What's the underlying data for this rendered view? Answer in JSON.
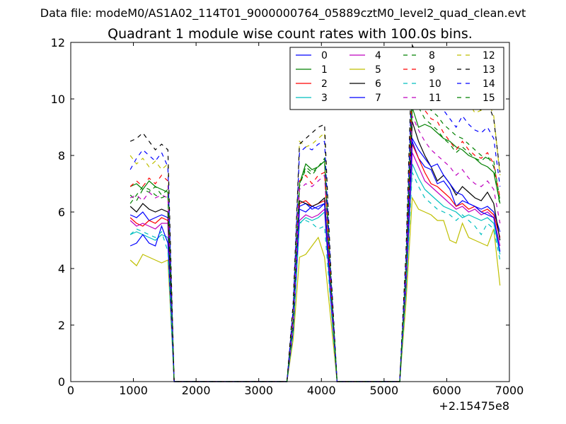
{
  "suptitle": "Data file: modeM0/AS1A02_114T01_9000000764_05889cztM0_level2_quad_clean.evt",
  "chart_data": {
    "type": "line",
    "title": "Quadrant 1 module wise count rates with 100.0s bins.",
    "xlabel": "",
    "ylabel": "",
    "x_offset_label": "+2.15475e8",
    "xlim": [
      0,
      7000
    ],
    "ylim": [
      0,
      12
    ],
    "xticks": [
      0,
      1000,
      2000,
      3000,
      4000,
      5000,
      6000,
      7000
    ],
    "yticks": [
      0,
      2,
      4,
      6,
      8,
      10,
      12
    ],
    "grid": false,
    "legend_position": "top-right",
    "x": [
      950,
      1050,
      1150,
      1250,
      1350,
      1450,
      1550,
      1650,
      1750,
      1850,
      1950,
      2050,
      2150,
      2250,
      2350,
      2450,
      2550,
      2650,
      2750,
      2850,
      2950,
      3050,
      3150,
      3250,
      3350,
      3450,
      3550,
      3650,
      3750,
      3850,
      3950,
      4050,
      4150,
      4250,
      4350,
      4450,
      4550,
      4650,
      4750,
      4850,
      4950,
      5050,
      5150,
      5250,
      5350,
      5450,
      5550,
      5650,
      5750,
      5850,
      5950,
      6050,
      6150,
      6250,
      6350,
      6450,
      6550,
      6650,
      6750,
      6850
    ],
    "series": [
      {
        "name": "0",
        "color": "#0000ff",
        "dash": false,
        "values": [
          5.9,
          5.8,
          6.0,
          5.7,
          5.8,
          5.9,
          5.8,
          0,
          0,
          0,
          0,
          0,
          0,
          0,
          0,
          0,
          0,
          0,
          0,
          0,
          0,
          0,
          0,
          0,
          0,
          0,
          2.0,
          6.2,
          6.3,
          6.1,
          6.2,
          6.3,
          3.0,
          0,
          0,
          0,
          0,
          0,
          0,
          0,
          0,
          0,
          0,
          0,
          3.5,
          8.5,
          7.9,
          7.6,
          7.5,
          7.0,
          7.1,
          6.8,
          6.2,
          6.4,
          6.3,
          6.2,
          6.1,
          6.2,
          6.0,
          5.3
        ]
      },
      {
        "name": "1",
        "color": "#008000",
        "dash": false,
        "values": [
          6.9,
          7.0,
          6.8,
          7.1,
          6.9,
          6.8,
          6.7,
          0,
          0,
          0,
          0,
          0,
          0,
          0,
          0,
          0,
          0,
          0,
          0,
          0,
          0,
          0,
          0,
          0,
          0,
          0,
          2.2,
          7.0,
          7.7,
          7.5,
          7.6,
          7.8,
          3.5,
          0,
          0,
          0,
          0,
          0,
          0,
          0,
          0,
          0,
          0,
          0,
          3.8,
          9.7,
          9.0,
          9.1,
          9.0,
          8.8,
          8.6,
          8.5,
          8.3,
          8.2,
          8.0,
          7.9,
          7.7,
          7.6,
          7.4,
          6.3
        ]
      },
      {
        "name": "2",
        "color": "#ff0000",
        "dash": false,
        "values": [
          5.8,
          5.6,
          5.5,
          5.7,
          5.6,
          5.8,
          5.7,
          0,
          0,
          0,
          0,
          0,
          0,
          0,
          0,
          0,
          0,
          0,
          0,
          0,
          0,
          0,
          0,
          0,
          0,
          0,
          2.0,
          6.3,
          6.4,
          6.2,
          6.3,
          6.4,
          3.0,
          0,
          0,
          0,
          0,
          0,
          0,
          0,
          0,
          0,
          0,
          0,
          3.4,
          8.4,
          7.9,
          7.4,
          7.0,
          6.9,
          6.7,
          6.5,
          6.2,
          6.3,
          6.1,
          6.2,
          6.0,
          6.1,
          5.9,
          5.1
        ]
      },
      {
        "name": "3",
        "color": "#00bfbf",
        "dash": false,
        "values": [
          5.2,
          5.3,
          5.2,
          5.1,
          5.0,
          5.2,
          5.1,
          0,
          0,
          0,
          0,
          0,
          0,
          0,
          0,
          0,
          0,
          0,
          0,
          0,
          0,
          0,
          0,
          0,
          0,
          0,
          1.8,
          5.6,
          5.8,
          5.7,
          5.8,
          6.0,
          2.8,
          0,
          0,
          0,
          0,
          0,
          0,
          0,
          0,
          0,
          0,
          0,
          3.3,
          7.7,
          7.2,
          6.8,
          6.6,
          6.4,
          6.2,
          6.1,
          6.0,
          5.8,
          5.9,
          5.8,
          5.7,
          5.8,
          5.6,
          4.5
        ]
      },
      {
        "name": "4",
        "color": "#bf00bf",
        "dash": false,
        "values": [
          5.7,
          5.5,
          5.6,
          5.5,
          5.4,
          5.6,
          5.6,
          0,
          0,
          0,
          0,
          0,
          0,
          0,
          0,
          0,
          0,
          0,
          0,
          0,
          0,
          0,
          0,
          0,
          0,
          0,
          1.9,
          5.7,
          5.9,
          5.8,
          5.9,
          6.1,
          2.9,
          0,
          0,
          0,
          0,
          0,
          0,
          0,
          0,
          0,
          0,
          0,
          3.3,
          8.1,
          7.6,
          7.1,
          6.9,
          6.7,
          6.5,
          6.3,
          6.1,
          6.2,
          6.0,
          6.1,
          5.9,
          6.0,
          5.8,
          4.8
        ]
      },
      {
        "name": "5",
        "color": "#bfbf00",
        "dash": false,
        "values": [
          4.3,
          4.1,
          4.5,
          4.4,
          4.3,
          4.2,
          4.3,
          0,
          0,
          0,
          0,
          0,
          0,
          0,
          0,
          0,
          0,
          0,
          0,
          0,
          0,
          0,
          0,
          0,
          0,
          0,
          1.5,
          4.4,
          4.5,
          4.8,
          5.1,
          4.4,
          2.2,
          0,
          0,
          0,
          0,
          0,
          0,
          0,
          0,
          0,
          0,
          0,
          2.8,
          6.5,
          6.1,
          6.0,
          5.9,
          5.7,
          5.7,
          5.0,
          4.9,
          5.6,
          5.1,
          5.0,
          4.9,
          4.8,
          5.4,
          3.4
        ]
      },
      {
        "name": "6",
        "color": "#000000",
        "dash": false,
        "values": [
          6.2,
          6.0,
          6.3,
          6.1,
          6.0,
          6.1,
          6.0,
          0,
          0,
          0,
          0,
          0,
          0,
          0,
          0,
          0,
          0,
          0,
          0,
          0,
          0,
          0,
          0,
          0,
          0,
          0,
          2.1,
          6.4,
          6.3,
          6.2,
          6.3,
          6.5,
          3.1,
          0,
          0,
          0,
          0,
          0,
          0,
          0,
          0,
          0,
          0,
          0,
          3.6,
          9.2,
          8.5,
          8.0,
          7.6,
          7.1,
          7.3,
          7.0,
          6.6,
          6.9,
          6.7,
          6.5,
          6.4,
          6.7,
          6.3,
          5.0
        ]
      },
      {
        "name": "7",
        "color": "#0000ff",
        "dash": false,
        "values": [
          4.8,
          4.9,
          5.2,
          4.9,
          4.8,
          5.5,
          4.9,
          0,
          0,
          0,
          0,
          0,
          0,
          0,
          0,
          0,
          0,
          0,
          0,
          0,
          0,
          0,
          0,
          0,
          0,
          0,
          1.8,
          6.1,
          6.0,
          6.2,
          6.1,
          6.3,
          3.0,
          0,
          0,
          0,
          0,
          0,
          0,
          0,
          0,
          0,
          0,
          0,
          3.4,
          8.6,
          8.2,
          7.9,
          7.6,
          7.7,
          7.3,
          7.0,
          6.7,
          6.6,
          6.3,
          6.2,
          6.0,
          5.9,
          5.8,
          4.6
        ]
      },
      {
        "name": "8",
        "color": "#008000",
        "dash": true,
        "values": [
          6.6,
          6.4,
          6.8,
          6.7,
          6.9,
          6.6,
          6.8,
          0,
          0,
          0,
          0,
          0,
          0,
          0,
          0,
          0,
          0,
          0,
          0,
          0,
          0,
          0,
          0,
          0,
          0,
          0,
          2.2,
          7.0,
          7.5,
          7.3,
          7.6,
          7.9,
          3.5,
          0,
          0,
          0,
          0,
          0,
          0,
          0,
          0,
          0,
          0,
          0,
          3.9,
          10.6,
          10.2,
          9.8,
          9.6,
          9.4,
          9.1,
          8.9,
          8.7,
          8.6,
          8.4,
          8.2,
          8.0,
          7.9,
          7.8,
          6.4
        ]
      },
      {
        "name": "9",
        "color": "#ff0000",
        "dash": true,
        "values": [
          6.9,
          7.1,
          6.9,
          7.2,
          7.0,
          7.3,
          7.1,
          0,
          0,
          0,
          0,
          0,
          0,
          0,
          0,
          0,
          0,
          0,
          0,
          0,
          0,
          0,
          0,
          0,
          0,
          0,
          2.3,
          7.1,
          7.3,
          7.0,
          7.3,
          7.4,
          3.4,
          0,
          0,
          0,
          0,
          0,
          0,
          0,
          0,
          0,
          0,
          0,
          4.0,
          10.5,
          10.1,
          9.6,
          9.3,
          9.2,
          8.8,
          8.5,
          8.2,
          8.5,
          8.2,
          8.0,
          7.9,
          8.1,
          7.7,
          6.5
        ]
      },
      {
        "name": "10",
        "color": "#00bfbf",
        "dash": true,
        "values": [
          5.2,
          5.4,
          5.3,
          5.2,
          5.1,
          5.3,
          4.6,
          0,
          0,
          0,
          0,
          0,
          0,
          0,
          0,
          0,
          0,
          0,
          0,
          0,
          0,
          0,
          0,
          0,
          0,
          0,
          1.8,
          5.6,
          5.7,
          5.6,
          5.4,
          5.5,
          2.7,
          0,
          0,
          0,
          0,
          0,
          0,
          0,
          0,
          0,
          0,
          0,
          3.2,
          7.4,
          6.9,
          6.5,
          6.3,
          6.1,
          6.0,
          5.9,
          5.7,
          5.9,
          5.7,
          5.5,
          5.2,
          5.6,
          5.4,
          4.3
        ]
      },
      {
        "name": "11",
        "color": "#bf00bf",
        "dash": true,
        "values": [
          6.5,
          6.6,
          6.4,
          6.7,
          6.5,
          6.6,
          6.5,
          0,
          0,
          0,
          0,
          0,
          0,
          0,
          0,
          0,
          0,
          0,
          0,
          0,
          0,
          0,
          0,
          0,
          0,
          0,
          2.1,
          6.8,
          7.0,
          6.9,
          7.1,
          7.3,
          3.3,
          0,
          0,
          0,
          0,
          0,
          0,
          0,
          0,
          0,
          0,
          0,
          3.7,
          9.4,
          8.9,
          8.5,
          8.2,
          8.0,
          7.8,
          7.6,
          7.3,
          7.5,
          7.2,
          7.0,
          6.9,
          7.1,
          6.8,
          5.6
        ]
      },
      {
        "name": "12",
        "color": "#bfbf00",
        "dash": true,
        "values": [
          8.0,
          7.7,
          7.9,
          7.6,
          7.8,
          7.5,
          7.7,
          0,
          0,
          0,
          0,
          0,
          0,
          0,
          0,
          0,
          0,
          0,
          0,
          0,
          0,
          0,
          0,
          0,
          0,
          0,
          2.6,
          8.5,
          8.3,
          8.4,
          8.6,
          8.8,
          3.9,
          0,
          0,
          0,
          0,
          0,
          0,
          0,
          0,
          0,
          0,
          0,
          4.4,
          11.6,
          11.2,
          10.9,
          10.6,
          10.3,
          10.1,
          9.8,
          9.7,
          10.1,
          9.9,
          9.5,
          9.6,
          10.0,
          9.4,
          7.3
        ]
      },
      {
        "name": "13",
        "color": "#000000",
        "dash": true,
        "values": [
          8.5,
          8.6,
          8.8,
          8.5,
          8.2,
          8.4,
          8.2,
          0,
          0,
          0,
          0,
          0,
          0,
          0,
          0,
          0,
          0,
          0,
          0,
          0,
          0,
          0,
          0,
          0,
          0,
          0,
          2.8,
          8.4,
          8.6,
          8.8,
          9.0,
          9.1,
          4.0,
          0,
          0,
          0,
          0,
          0,
          0,
          0,
          0,
          0,
          0,
          0,
          4.6,
          11.9,
          11.5,
          11.2,
          10.8,
          10.6,
          10.3,
          10.0,
          9.8,
          10.2,
          10.0,
          9.7,
          9.6,
          9.9,
          9.3,
          7.4
        ]
      },
      {
        "name": "14",
        "color": "#0000ff",
        "dash": true,
        "values": [
          7.5,
          7.9,
          8.2,
          8.0,
          7.8,
          8.1,
          7.6,
          0,
          0,
          0,
          0,
          0,
          0,
          0,
          0,
          0,
          0,
          0,
          0,
          0,
          0,
          0,
          0,
          0,
          0,
          0,
          2.6,
          8.1,
          8.3,
          8.2,
          8.4,
          8.5,
          3.8,
          0,
          0,
          0,
          0,
          0,
          0,
          0,
          0,
          0,
          0,
          0,
          4.3,
          11.2,
          10.7,
          10.4,
          10.0,
          9.8,
          9.6,
          9.3,
          9.0,
          9.4,
          9.1,
          8.9,
          8.8,
          9.0,
          8.6,
          6.9
        ]
      },
      {
        "name": "15",
        "color": "#008000",
        "dash": true,
        "values": [
          6.3,
          6.6,
          6.9,
          6.8,
          6.6,
          6.5,
          6.6,
          0,
          0,
          0,
          0,
          0,
          0,
          0,
          0,
          0,
          0,
          0,
          0,
          0,
          0,
          0,
          0,
          0,
          0,
          0,
          2.1,
          6.9,
          7.6,
          7.4,
          7.6,
          7.8,
          3.5,
          0,
          0,
          0,
          0,
          0,
          0,
          0,
          0,
          0,
          0,
          0,
          3.8,
          10.2,
          9.7,
          9.3,
          9.1,
          8.9,
          8.6,
          8.4,
          8.1,
          8.3,
          8.1,
          7.9,
          7.8,
          8.0,
          7.6,
          6.2
        ]
      }
    ]
  }
}
